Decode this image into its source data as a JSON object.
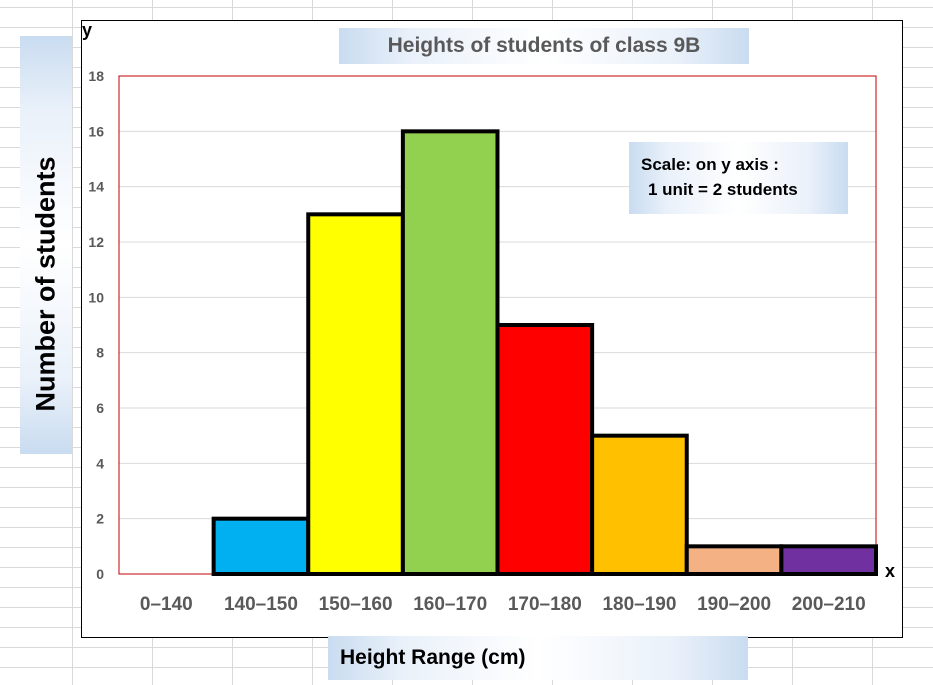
{
  "chart_data": {
    "type": "bar",
    "title": "Heights of students of class 9B",
    "xlabel": "Height Range (cm)",
    "ylabel": "Number of students",
    "x_axis_letter": "x",
    "y_axis_letter": "y",
    "categories": [
      "0–140",
      "140–150",
      "150–160",
      "160–170",
      "170–180",
      "180–190",
      "190–200",
      "200–210"
    ],
    "values": [
      0,
      2,
      13,
      16,
      9,
      5,
      1,
      1
    ],
    "colors": [
      "#ffffff",
      "#00b0f0",
      "#ffff00",
      "#92d050",
      "#ff0000",
      "#ffc000",
      "#f4b183",
      "#7030a0"
    ],
    "ylim": [
      0,
      18
    ],
    "yticks": [
      0,
      2,
      4,
      6,
      8,
      10,
      12,
      14,
      16,
      18
    ],
    "grid": true,
    "legend": "none",
    "annotation": {
      "line1": "Scale: on y axis :",
      "line2": "1 unit = 2 students"
    }
  }
}
